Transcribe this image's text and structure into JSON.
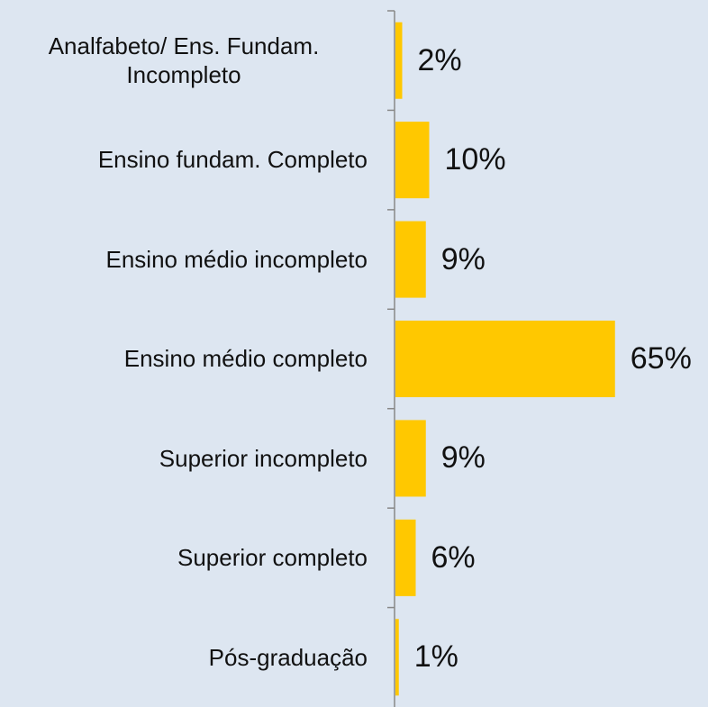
{
  "chart_data": {
    "type": "bar",
    "orientation": "horizontal",
    "categories": [
      "Analfabeto/ Ens. Fundam. Incompleto",
      "Ensino fundam. Completo",
      "Ensino médio incompleto",
      "Ensino médio completo",
      "Superior incompleto",
      "Superior completo",
      "Pós-graduação"
    ],
    "values": [
      2,
      10,
      9,
      65,
      9,
      6,
      1
    ],
    "value_labels": [
      "2%",
      "10%",
      "9%",
      "65%",
      "9%",
      "6%",
      "1%"
    ],
    "color": "#ffc800"
  }
}
